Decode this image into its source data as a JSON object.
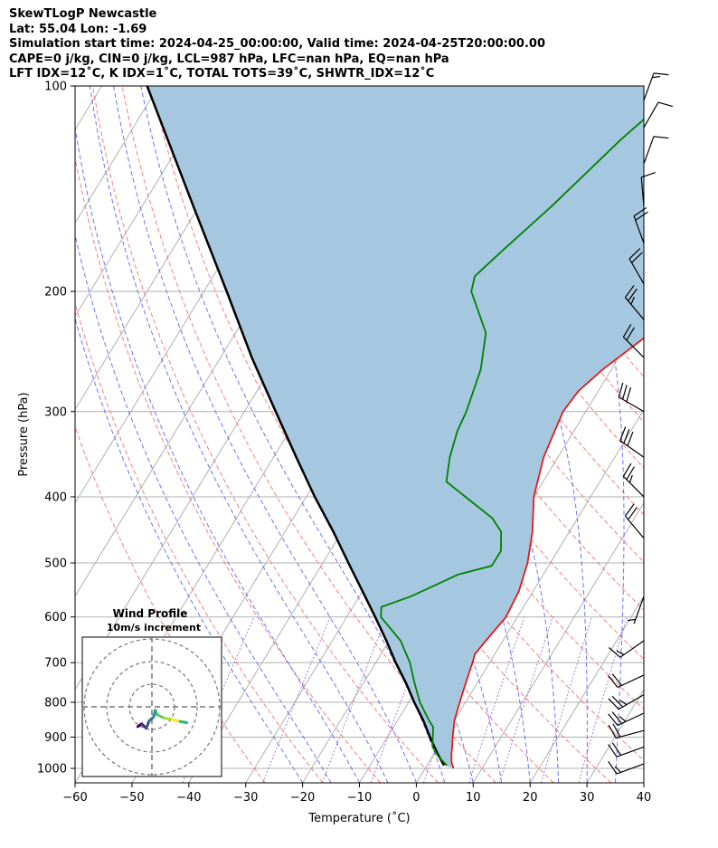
{
  "header": {
    "line1": "SkewTLogP Newcastle",
    "line2": "Lat: 55.04   Lon: -1.69",
    "line3": "Simulation start time: 2024-04-25_00:00:00, Valid time: 2024-04-25T20:00:00.00",
    "line4": "CAPE=0 j/kg, CIN=0 j/kg, LCL=987 hPa, LFC=nan hPa, EQ=nan hPa",
    "line5": "LFT IDX=12˚C, K IDX=1˚C, TOTAL TOTS=39˚C, SHWTR_IDX=12˚C"
  },
  "chart_data": {
    "type": "skew-t-log-p",
    "xlabel": "Temperature (˚C)",
    "ylabel": "Pressure (hPa)",
    "xlim": [
      -60,
      40
    ],
    "ylim": [
      1050,
      100
    ],
    "y_scale": "log",
    "grid": true,
    "x_ticks": [
      "−60",
      "−50",
      "−40",
      "−30",
      "−20",
      "−10",
      "0",
      "10",
      "20",
      "30",
      "40"
    ],
    "y_ticks": [
      "100",
      "200",
      "300",
      "400",
      "500",
      "600",
      "700",
      "800",
      "900",
      "1000"
    ],
    "colors": {
      "temperature": "#e41a1c",
      "dewpoint": "#008000",
      "parcel": "#000000",
      "shade": "#a5c8e0",
      "dry_adiabat": "#ff6b6b",
      "moist_adiabat": "#4f5bff",
      "mixing_ratio": "#9a57d1"
    },
    "temperature": [
      [
        1000,
        5
      ],
      [
        980,
        4
      ],
      [
        950,
        3
      ],
      [
        925,
        2.3
      ],
      [
        900,
        1.5
      ],
      [
        850,
        0
      ],
      [
        800,
        -1
      ],
      [
        750,
        -2
      ],
      [
        700,
        -3
      ],
      [
        680,
        -3.5
      ],
      [
        650,
        -3
      ],
      [
        600,
        -2
      ],
      [
        550,
        -2.5
      ],
      [
        500,
        -4
      ],
      [
        450,
        -6.5
      ],
      [
        400,
        -10
      ],
      [
        350,
        -12.5
      ],
      [
        300,
        -14
      ],
      [
        280,
        -13.5
      ],
      [
        260,
        -11.5
      ],
      [
        230,
        -7
      ],
      [
        200,
        -2.5
      ],
      [
        185,
        0.5
      ],
      [
        160,
        3
      ],
      [
        140,
        6.5
      ],
      [
        125,
        8.5
      ],
      [
        110,
        11
      ],
      [
        100,
        12.5
      ]
    ],
    "dewpoint": [
      [
        990,
        3.5
      ],
      [
        960,
        1
      ],
      [
        930,
        -1
      ],
      [
        900,
        -2
      ],
      [
        870,
        -3
      ],
      [
        850,
        -4.5
      ],
      [
        800,
        -8
      ],
      [
        750,
        -11
      ],
      [
        700,
        -14
      ],
      [
        650,
        -18
      ],
      [
        600,
        -24
      ],
      [
        580,
        -25
      ],
      [
        560,
        -21
      ],
      [
        540,
        -18
      ],
      [
        520,
        -15
      ],
      [
        505,
        -10
      ],
      [
        480,
        -10
      ],
      [
        450,
        -12
      ],
      [
        430,
        -15
      ],
      [
        400,
        -22
      ],
      [
        380,
        -27
      ],
      [
        350,
        -29
      ],
      [
        320,
        -30.5
      ],
      [
        300,
        -31
      ],
      [
        260,
        -33
      ],
      [
        230,
        -36
      ],
      [
        200,
        -43
      ],
      [
        190,
        -44
      ],
      [
        175,
        -42
      ],
      [
        150,
        -38
      ],
      [
        120,
        -33
      ],
      [
        100,
        -28
      ]
    ],
    "parcel": [
      [
        990,
        3
      ],
      [
        950,
        0.5
      ],
      [
        900,
        -2.5
      ],
      [
        850,
        -5.5
      ],
      [
        800,
        -9
      ],
      [
        750,
        -12.5
      ],
      [
        700,
        -16.5
      ],
      [
        650,
        -20.5
      ],
      [
        600,
        -25
      ],
      [
        550,
        -30
      ],
      [
        500,
        -35.5
      ],
      [
        450,
        -41.5
      ],
      [
        400,
        -48.5
      ],
      [
        350,
        -56
      ],
      [
        300,
        -64.5
      ],
      [
        250,
        -74.5
      ],
      [
        200,
        -86
      ],
      [
        150,
        -101
      ],
      [
        100,
        -122
      ]
    ],
    "wind_barbs": [
      {
        "p": 985,
        "dir": 250,
        "spd": 15
      },
      {
        "p": 930,
        "dir": 250,
        "spd": 20
      },
      {
        "p": 880,
        "dir": 255,
        "spd": 20
      },
      {
        "p": 830,
        "dir": 245,
        "spd": 25
      },
      {
        "p": 780,
        "dir": 240,
        "spd": 25
      },
      {
        "p": 730,
        "dir": 245,
        "spd": 20
      },
      {
        "p": 650,
        "dir": 235,
        "spd": 15
      },
      {
        "p": 560,
        "dir": 200,
        "spd": 5
      },
      {
        "p": 460,
        "dir": 320,
        "spd": 20
      },
      {
        "p": 400,
        "dir": 315,
        "spd": 25
      },
      {
        "p": 350,
        "dir": 305,
        "spd": 30
      },
      {
        "p": 300,
        "dir": 300,
        "spd": 30
      },
      {
        "p": 250,
        "dir": 315,
        "spd": 20
      },
      {
        "p": 220,
        "dir": 320,
        "spd": 25
      },
      {
        "p": 195,
        "dir": 330,
        "spd": 20
      },
      {
        "p": 170,
        "dir": 340,
        "spd": 20
      },
      {
        "p": 150,
        "dir": 355,
        "spd": 10
      },
      {
        "p": 130,
        "dir": 20,
        "spd": 10
      },
      {
        "p": 115,
        "dir": 30,
        "spd": 10
      },
      {
        "p": 105,
        "dir": 20,
        "spd": 15
      }
    ],
    "inset": {
      "title": "Wind Profile",
      "subtitle": "10m/s increment",
      "points": [
        [
          -2.5,
          -3.5
        ],
        [
          -1.8,
          -3.0
        ],
        [
          -1.0,
          -3.8
        ],
        [
          -0.5,
          -2.5
        ],
        [
          0.3,
          -1.8
        ],
        [
          0.6,
          -0.6
        ],
        [
          0.9,
          -1.4
        ],
        [
          2.2,
          -2.0
        ],
        [
          3.6,
          -2.2
        ],
        [
          5.0,
          -2.6
        ],
        [
          6.2,
          -2.8
        ]
      ]
    }
  }
}
